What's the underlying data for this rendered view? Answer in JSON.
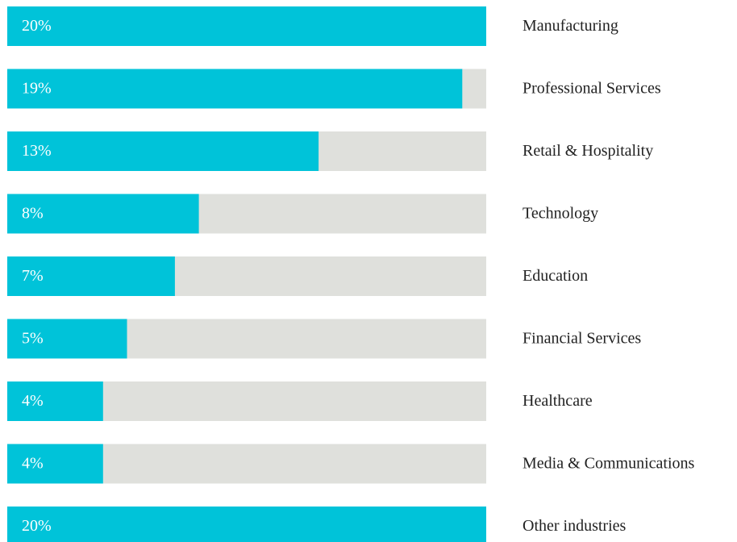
{
  "chart_data": {
    "type": "bar",
    "orientation": "horizontal",
    "categories": [
      "Manufacturing",
      "Professional Services",
      "Retail & Hospitality",
      "Technology",
      "Education",
      "Financial Services",
      "Healthcare",
      "Media & Communications",
      "Other industries"
    ],
    "values": [
      20,
      19,
      13,
      8,
      7,
      5,
      4,
      4,
      20
    ],
    "value_labels": [
      "20%",
      "19%",
      "13%",
      "8%",
      "7%",
      "5%",
      "4%",
      "4%",
      "20%"
    ],
    "color": "#00c3d9",
    "track_color": "#dfe0dc",
    "xlim": [
      0,
      20
    ]
  }
}
